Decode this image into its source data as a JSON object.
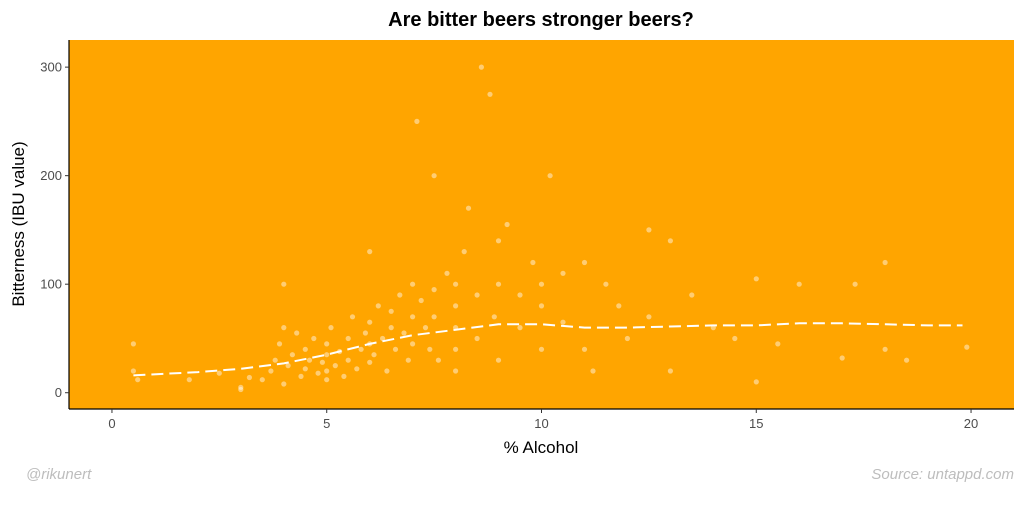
{
  "chart_data": {
    "type": "scatter",
    "title": "Are bitter beers stronger beers?",
    "xlabel": "% Alcohol",
    "ylabel": "Bitterness (IBU value)",
    "xlim": [
      -1,
      21
    ],
    "ylim": [
      -15,
      325
    ],
    "x_ticks": [
      0,
      5,
      10,
      15,
      20
    ],
    "y_ticks": [
      0,
      100,
      200,
      300
    ],
    "grid": false,
    "legend": "none",
    "colors": {
      "panel": "#FFA500",
      "points": "#FFFFFF",
      "trend": "#FFFFFF"
    },
    "trend_line": {
      "style": "dashed",
      "x": [
        0.5,
        2,
        3,
        4,
        5,
        6,
        7,
        8,
        9,
        10,
        11,
        12,
        13,
        14,
        15,
        16,
        17,
        18,
        19,
        19.8
      ],
      "y": [
        16,
        19,
        22,
        27,
        35,
        45,
        53,
        58,
        63,
        63,
        60,
        60,
        61,
        62,
        62,
        64,
        64,
        63,
        62,
        62
      ]
    },
    "points": [
      [
        0.5,
        45
      ],
      [
        0.5,
        20
      ],
      [
        0.6,
        12
      ],
      [
        1.8,
        12
      ],
      [
        2.5,
        18
      ],
      [
        3,
        5
      ],
      [
        3,
        3
      ],
      [
        3.2,
        14
      ],
      [
        3.5,
        12
      ],
      [
        3.7,
        20
      ],
      [
        3.8,
        30
      ],
      [
        3.9,
        45
      ],
      [
        4,
        100
      ],
      [
        4,
        8
      ],
      [
        4,
        60
      ],
      [
        4.1,
        25
      ],
      [
        4.2,
        35
      ],
      [
        4.3,
        55
      ],
      [
        4.4,
        15
      ],
      [
        4.5,
        40
      ],
      [
        4.5,
        22
      ],
      [
        4.6,
        30
      ],
      [
        4.7,
        50
      ],
      [
        4.8,
        18
      ],
      [
        4.9,
        28
      ],
      [
        5,
        35
      ],
      [
        5,
        20
      ],
      [
        5,
        45
      ],
      [
        5,
        12
      ],
      [
        5.1,
        60
      ],
      [
        5.2,
        25
      ],
      [
        5.3,
        38
      ],
      [
        5.4,
        15
      ],
      [
        5.5,
        50
      ],
      [
        5.5,
        30
      ],
      [
        5.6,
        70
      ],
      [
        5.7,
        22
      ],
      [
        5.8,
        40
      ],
      [
        5.9,
        55
      ],
      [
        6,
        130
      ],
      [
        6,
        45
      ],
      [
        6,
        28
      ],
      [
        6,
        65
      ],
      [
        6.1,
        35
      ],
      [
        6.2,
        80
      ],
      [
        6.3,
        50
      ],
      [
        6.4,
        20
      ],
      [
        6.5,
        60
      ],
      [
        6.5,
        75
      ],
      [
        6.6,
        40
      ],
      [
        6.7,
        90
      ],
      [
        6.8,
        55
      ],
      [
        6.9,
        30
      ],
      [
        7,
        70
      ],
      [
        7,
        100
      ],
      [
        7,
        45
      ],
      [
        7.1,
        250
      ],
      [
        7.2,
        85
      ],
      [
        7.3,
        60
      ],
      [
        7.4,
        40
      ],
      [
        7.5,
        200
      ],
      [
        7.5,
        95
      ],
      [
        7.5,
        70
      ],
      [
        7.6,
        30
      ],
      [
        7.8,
        110
      ],
      [
        8,
        100
      ],
      [
        8,
        80
      ],
      [
        8,
        60
      ],
      [
        8,
        40
      ],
      [
        8,
        20
      ],
      [
        8.2,
        130
      ],
      [
        8.3,
        170
      ],
      [
        8.5,
        90
      ],
      [
        8.5,
        50
      ],
      [
        8.6,
        300
      ],
      [
        8.8,
        275
      ],
      [
        8.9,
        70
      ],
      [
        9,
        100
      ],
      [
        9,
        140
      ],
      [
        9,
        30
      ],
      [
        9.2,
        155
      ],
      [
        9.5,
        90
      ],
      [
        9.5,
        60
      ],
      [
        9.8,
        120
      ],
      [
        10,
        100
      ],
      [
        10,
        80
      ],
      [
        10,
        40
      ],
      [
        10.2,
        200
      ],
      [
        10.5,
        110
      ],
      [
        10.5,
        65
      ],
      [
        11,
        120
      ],
      [
        11,
        40
      ],
      [
        11.2,
        20
      ],
      [
        11.5,
        100
      ],
      [
        11.8,
        80
      ],
      [
        12,
        50
      ],
      [
        12.5,
        150
      ],
      [
        12.5,
        70
      ],
      [
        13,
        140
      ],
      [
        13,
        20
      ],
      [
        13.5,
        90
      ],
      [
        14,
        60
      ],
      [
        14.5,
        50
      ],
      [
        15,
        105
      ],
      [
        15,
        10
      ],
      [
        15.5,
        45
      ],
      [
        16,
        100
      ],
      [
        17,
        32
      ],
      [
        17.3,
        100
      ],
      [
        18,
        120
      ],
      [
        18,
        40
      ],
      [
        18.5,
        30
      ],
      [
        19.9,
        42
      ]
    ]
  },
  "footer": {
    "left": "@rikunert",
    "right": "Source: untappd.com"
  }
}
